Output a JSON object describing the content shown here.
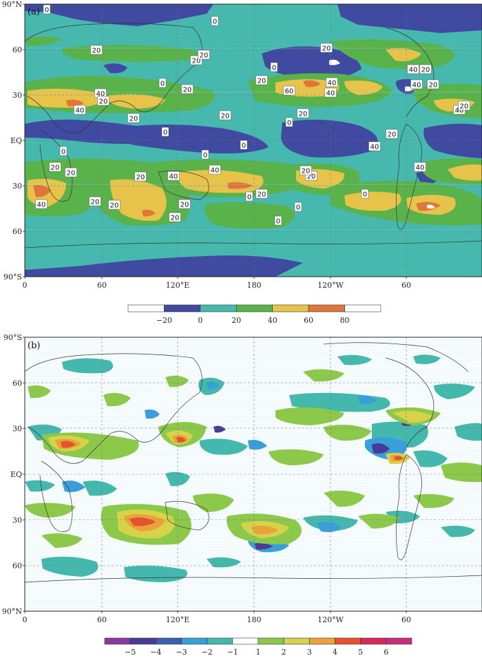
{
  "panel_a": {
    "label": "(a)",
    "lat_ticks": [
      "90°N",
      "60",
      "30",
      "EQ",
      "30",
      "60",
      "90°S"
    ],
    "lon_ticks": [
      "0",
      "60",
      "120°E",
      "180",
      "120°W",
      "60"
    ],
    "contour_labels": [
      "0",
      "0",
      "20",
      "20",
      "20",
      "0",
      "0",
      "20",
      "20",
      "40",
      "40",
      "60",
      "20",
      "40",
      "20",
      "40",
      "20",
      "0",
      "20",
      "0",
      "0",
      "20",
      "20",
      "0",
      "0",
      "20",
      "20",
      "40",
      "40",
      "20",
      "40",
      "20",
      "40",
      "20",
      "40",
      "20",
      "40",
      "40",
      "20",
      "20",
      "20",
      "0",
      "0",
      "20",
      "20",
      "40",
      "20",
      "20",
      "0",
      "0"
    ],
    "colorbar": {
      "ticks": [
        "−20",
        "0",
        "20",
        "40",
        "60",
        "80"
      ],
      "colors": [
        "#ffffff",
        "#3f4aa0",
        "#46b8ad",
        "#5ab24a",
        "#e8c34a",
        "#e0763a",
        "#ffffff"
      ]
    }
  },
  "panel_b": {
    "label": "(b)",
    "lat_ticks": [
      "90°S",
      "60",
      "30",
      "EQ",
      "30",
      "60",
      "90°N"
    ],
    "lon_ticks": [
      "0",
      "60",
      "120°E",
      "180",
      "120°W",
      "60"
    ],
    "colorbar": {
      "ticks": [
        "−5",
        "−4",
        "−3",
        "−2",
        "−1",
        "1",
        "2",
        "3",
        "4",
        "5",
        "6"
      ],
      "colors": [
        "#8a3a9a",
        "#4b3b98",
        "#3c5fb0",
        "#3a9fd8",
        "#45b8ad",
        "#ffffff",
        "#8cc84a",
        "#d6d24a",
        "#e9a33a",
        "#e5532e",
        "#d8285a",
        "#c82c7c"
      ]
    }
  },
  "chart_data": [
    {
      "type": "heatmap",
      "title": "",
      "xlabel": "",
      "ylabel": "",
      "x_ticks": [
        "0",
        "60",
        "120°E",
        "180",
        "120°W",
        "60"
      ],
      "y_ticks": [
        "90°N",
        "60",
        "30",
        "EQ",
        "30",
        "60",
        "90°S"
      ],
      "color_levels": [
        -20,
        0,
        20,
        40,
        60,
        80
      ],
      "grid": true
    },
    {
      "type": "heatmap",
      "title": "",
      "xlabel": "",
      "ylabel": "",
      "x_ticks": [
        "0",
        "60",
        "120°E",
        "180",
        "120°W",
        "60"
      ],
      "y_ticks": [
        "90°S",
        "60",
        "30",
        "EQ",
        "30",
        "60",
        "90°N"
      ],
      "color_levels": [
        -5,
        -4,
        -3,
        -2,
        -1,
        1,
        2,
        3,
        4,
        5,
        6
      ],
      "grid": true
    }
  ]
}
